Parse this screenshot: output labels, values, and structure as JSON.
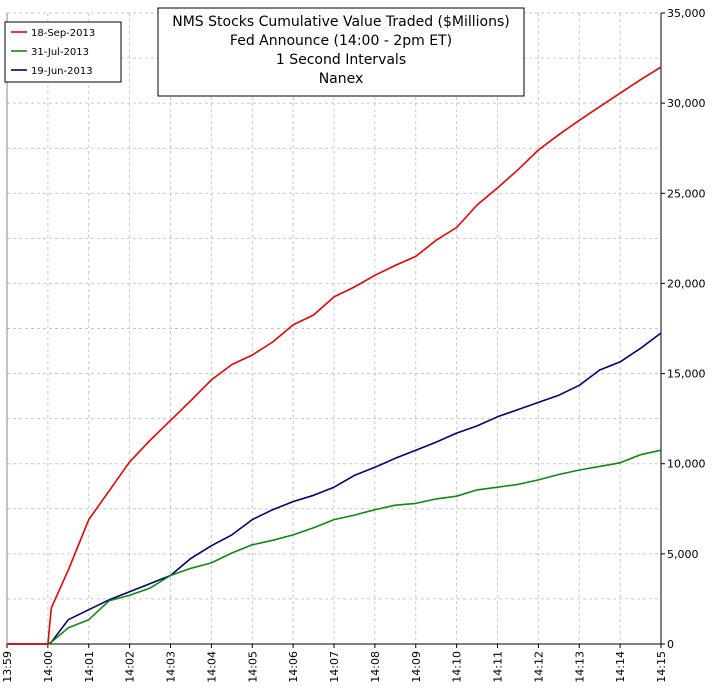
{
  "chart_data": {
    "type": "line",
    "title": [
      "NMS Stocks Cumulative Value Traded ($Millions)",
      "Fed Announce (14:00 - 2pm ET)",
      "1 Second Intervals",
      "Nanex"
    ],
    "x": [
      "13:59:00",
      "14:00:00",
      "14:00:05",
      "14:00:30",
      "14:01:00",
      "14:01:30",
      "14:02:00",
      "14:02:30",
      "14:03:00",
      "14:03:30",
      "14:04:00",
      "14:04:30",
      "14:05:00",
      "14:05:30",
      "14:06:00",
      "14:06:30",
      "14:07:00",
      "14:07:30",
      "14:08:00",
      "14:08:30",
      "14:09:00",
      "14:09:30",
      "14:10:00",
      "14:10:30",
      "14:11:00",
      "14:11:30",
      "14:12:00",
      "14:12:30",
      "14:13:00",
      "14:13:30",
      "14:14:00",
      "14:14:30",
      "14:15:00"
    ],
    "series": [
      {
        "name": "18-Sep-2013",
        "color": "#ee0000",
        "values": [
          0,
          0,
          2000,
          4100,
          6900,
          8500,
          10100,
          11300,
          12400,
          13500,
          14650,
          15500,
          16030,
          16750,
          17700,
          18250,
          19250,
          19800,
          20450,
          21000,
          21500,
          22400,
          23100,
          24350,
          25300,
          26300,
          27400,
          28250,
          29050,
          29800,
          30550,
          31300,
          32000
        ]
      },
      {
        "name": "31-Jul-2013",
        "color": "#118811",
        "values": [
          0,
          0,
          100,
          900,
          1350,
          2400,
          2700,
          3100,
          3800,
          4200,
          4500,
          5050,
          5500,
          5750,
          6050,
          6450,
          6900,
          7150,
          7450,
          7700,
          7800,
          8050,
          8200,
          8550,
          8700,
          8850,
          9100,
          9400,
          9650,
          9850,
          10050,
          10500,
          10750
        ]
      },
      {
        "name": "19-Jun-2013",
        "color": "#000077",
        "values": [
          0,
          0,
          100,
          1350,
          1900,
          2450,
          2900,
          3350,
          3800,
          4750,
          5450,
          6050,
          6900,
          7450,
          7900,
          8250,
          8700,
          9350,
          9800,
          10300,
          10750,
          11200,
          11700,
          12100,
          12600,
          13000,
          13400,
          13800,
          14350,
          15200,
          15650,
          16400,
          17250
        ]
      }
    ],
    "xlim": [
      "13:59",
      "14:15"
    ],
    "xticks": [
      "13:59",
      "14:00",
      "14:01",
      "14:02",
      "14:03",
      "14:04",
      "14:05",
      "14:06",
      "14:07",
      "14:08",
      "14:09",
      "14:10",
      "14:11",
      "14:12",
      "14:13",
      "14:14",
      "14:15"
    ],
    "ylim": [
      0,
      35000
    ],
    "yticks": [
      0,
      {
        "value": 5000,
        "label": "5,000"
      },
      {
        "value": 10000,
        "label": "10,000"
      },
      {
        "value": 15000,
        "label": "15,000"
      },
      {
        "value": 20000,
        "label": "20,000"
      },
      {
        "value": 25000,
        "label": "25,000"
      },
      {
        "value": 30000,
        "label": "30,000"
      },
      {
        "value": 35000,
        "label": "35,000"
      }
    ],
    "yminor": [
      2500,
      7500,
      12500,
      17500,
      22500,
      27500,
      32500
    ],
    "grid": true,
    "legend": "top-left"
  }
}
